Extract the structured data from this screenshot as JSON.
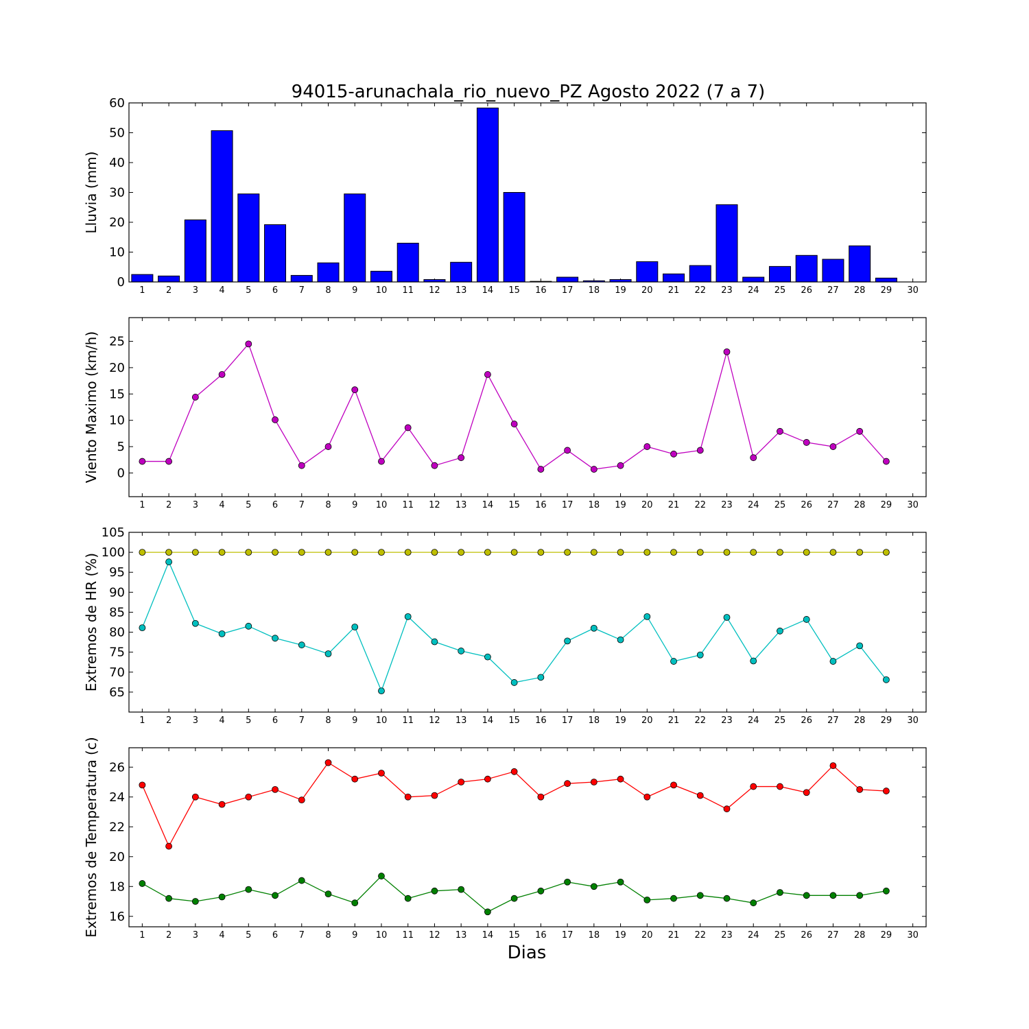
{
  "figure_title": "94015-arunachala_rio_nuevo_PZ Agosto 2022  (7 a 7)",
  "x_axis_label": "Dias",
  "chart_data": [
    {
      "type": "bar",
      "ylabel": "Lluvia (mm)",
      "ylim": [
        0,
        60
      ],
      "yticks": [
        0,
        10,
        20,
        30,
        40,
        50,
        60
      ],
      "xticks": [
        1,
        2,
        3,
        4,
        5,
        6,
        7,
        8,
        9,
        10,
        11,
        12,
        13,
        14,
        15,
        16,
        17,
        18,
        19,
        20,
        21,
        22,
        23,
        24,
        25,
        26,
        27,
        28,
        29,
        30
      ],
      "x": [
        1,
        2,
        3,
        4,
        5,
        6,
        7,
        8,
        9,
        10,
        11,
        12,
        13,
        14,
        15,
        16,
        17,
        18,
        19,
        20,
        21,
        22,
        23,
        24,
        25,
        26,
        27,
        28,
        29
      ],
      "series": [
        {
          "color": "#0000ff",
          "values": [
            2.5,
            2.0,
            20.8,
            50.7,
            29.5,
            19.2,
            2.2,
            6.4,
            29.5,
            3.6,
            13.0,
            0.8,
            6.6,
            58.3,
            30.0,
            0.2,
            1.6,
            0.4,
            0.8,
            6.8,
            2.7,
            5.5,
            25.9,
            1.6,
            5.2,
            8.9,
            7.6,
            12.1,
            1.3
          ]
        }
      ]
    },
    {
      "type": "line",
      "ylabel": "Viento Maximo (km/h)",
      "ylim": [
        -4.5,
        29.5
      ],
      "yticks": [
        0,
        5,
        10,
        15,
        20,
        25
      ],
      "xticks": [
        1,
        2,
        3,
        4,
        5,
        6,
        7,
        8,
        9,
        10,
        11,
        12,
        13,
        14,
        15,
        16,
        17,
        18,
        19,
        20,
        21,
        22,
        23,
        24,
        25,
        26,
        27,
        28,
        29,
        30
      ],
      "x": [
        1,
        2,
        3,
        4,
        5,
        6,
        7,
        8,
        9,
        10,
        11,
        12,
        13,
        14,
        15,
        16,
        17,
        18,
        19,
        20,
        21,
        22,
        23,
        24,
        25,
        26,
        27,
        28,
        29
      ],
      "series": [
        {
          "color": "#bf00bf",
          "values": [
            2.2,
            2.2,
            14.4,
            18.7,
            24.5,
            10.1,
            1.4,
            5.0,
            15.8,
            2.2,
            8.6,
            1.4,
            2.9,
            18.7,
            9.3,
            0.7,
            4.3,
            0.7,
            1.4,
            5.0,
            3.6,
            4.3,
            23.0,
            2.9,
            7.9,
            5.8,
            5.0,
            7.9,
            2.2
          ]
        }
      ]
    },
    {
      "type": "line",
      "ylabel": "Extremos de HR (%)",
      "ylim": [
        60,
        105
      ],
      "yticks": [
        65,
        70,
        75,
        80,
        85,
        90,
        95,
        100,
        105
      ],
      "xticks": [
        1,
        2,
        3,
        4,
        5,
        6,
        7,
        8,
        9,
        10,
        11,
        12,
        13,
        14,
        15,
        16,
        17,
        18,
        19,
        20,
        21,
        22,
        23,
        24,
        25,
        26,
        27,
        28,
        29,
        30
      ],
      "x": [
        1,
        2,
        3,
        4,
        5,
        6,
        7,
        8,
        9,
        10,
        11,
        12,
        13,
        14,
        15,
        16,
        17,
        18,
        19,
        20,
        21,
        22,
        23,
        24,
        25,
        26,
        27,
        28,
        29
      ],
      "series": [
        {
          "color": "#bfbf00",
          "values": [
            100,
            100,
            100,
            100,
            100,
            100,
            100,
            100,
            100,
            100,
            100,
            100,
            100,
            100,
            100,
            100,
            100,
            100,
            100,
            100,
            100,
            100,
            100,
            100,
            100,
            100,
            100,
            100,
            100
          ]
        },
        {
          "color": "#00bfbf",
          "values": [
            81.1,
            97.6,
            82.2,
            79.6,
            81.5,
            78.5,
            76.8,
            74.6,
            81.3,
            65.3,
            83.9,
            77.6,
            75.3,
            73.8,
            67.4,
            68.7,
            77.8,
            81.0,
            78.1,
            83.9,
            72.7,
            74.3,
            83.7,
            72.8,
            80.3,
            83.2,
            72.7,
            76.6,
            68.1
          ]
        }
      ]
    },
    {
      "type": "line",
      "ylabel": "Extremos de Temperatura (c)",
      "ylim": [
        15.3,
        27.3
      ],
      "yticks": [
        16,
        18,
        20,
        22,
        24,
        26
      ],
      "xticks": [
        1,
        2,
        3,
        4,
        5,
        6,
        7,
        8,
        9,
        10,
        11,
        12,
        13,
        14,
        15,
        16,
        17,
        18,
        19,
        20,
        21,
        22,
        23,
        24,
        25,
        26,
        27,
        28,
        29,
        30
      ],
      "x": [
        1,
        2,
        3,
        4,
        5,
        6,
        7,
        8,
        9,
        10,
        11,
        12,
        13,
        14,
        15,
        16,
        17,
        18,
        19,
        20,
        21,
        22,
        23,
        24,
        25,
        26,
        27,
        28,
        29
      ],
      "series": [
        {
          "color": "#ff0000",
          "values": [
            24.8,
            20.7,
            24.0,
            23.5,
            24.0,
            24.5,
            23.8,
            26.3,
            25.2,
            25.6,
            24.0,
            24.1,
            25.0,
            25.2,
            25.7,
            24.0,
            24.9,
            25.0,
            25.2,
            24.0,
            24.8,
            24.1,
            23.2,
            24.7,
            24.7,
            24.3,
            26.1,
            24.5,
            24.4
          ]
        },
        {
          "color": "#008000",
          "values": [
            18.2,
            17.2,
            17.0,
            17.3,
            17.8,
            17.4,
            18.4,
            17.5,
            16.9,
            18.7,
            17.2,
            17.7,
            17.8,
            16.3,
            17.2,
            17.7,
            18.3,
            18.0,
            18.3,
            17.1,
            17.2,
            17.4,
            17.2,
            16.9,
            17.6,
            17.4,
            17.4,
            17.4,
            17.7
          ]
        }
      ]
    }
  ]
}
